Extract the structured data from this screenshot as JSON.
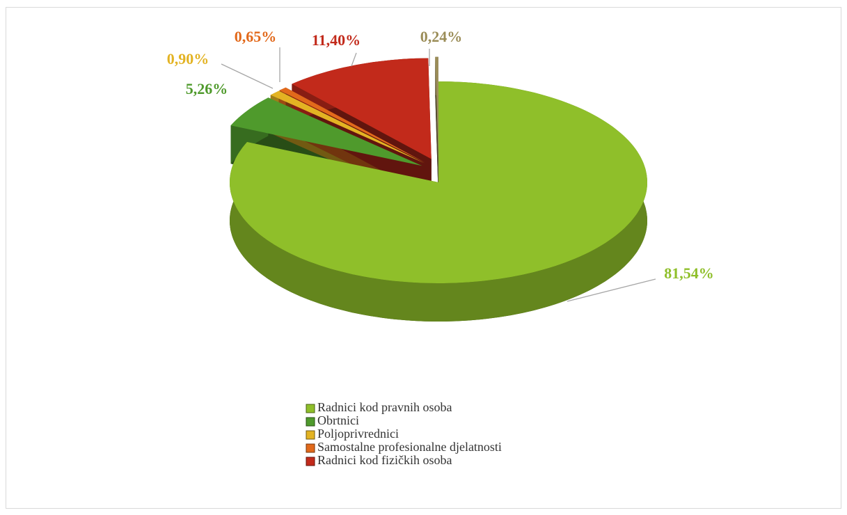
{
  "chart_data": {
    "type": "pie",
    "categories": [
      "Radnici kod pravnih osoba",
      "Obrtnici",
      "Poljoprivrednici",
      "Samostalne profesionalne djelatnosti",
      "Radnici kod fizičkih osoba",
      null
    ],
    "values": [
      81.54,
      5.26,
      0.9,
      0.65,
      11.4,
      0.24
    ],
    "value_labels": [
      "81,54%",
      "5,26%",
      "0,90%",
      "0,65%",
      "11,40%",
      "0,24%"
    ],
    "colors": [
      "#8fbf2a",
      "#4f9a2c",
      "#e3b323",
      "#e2691b",
      "#c22a1b",
      "#9b8d58"
    ],
    "legend": "bottom"
  }
}
